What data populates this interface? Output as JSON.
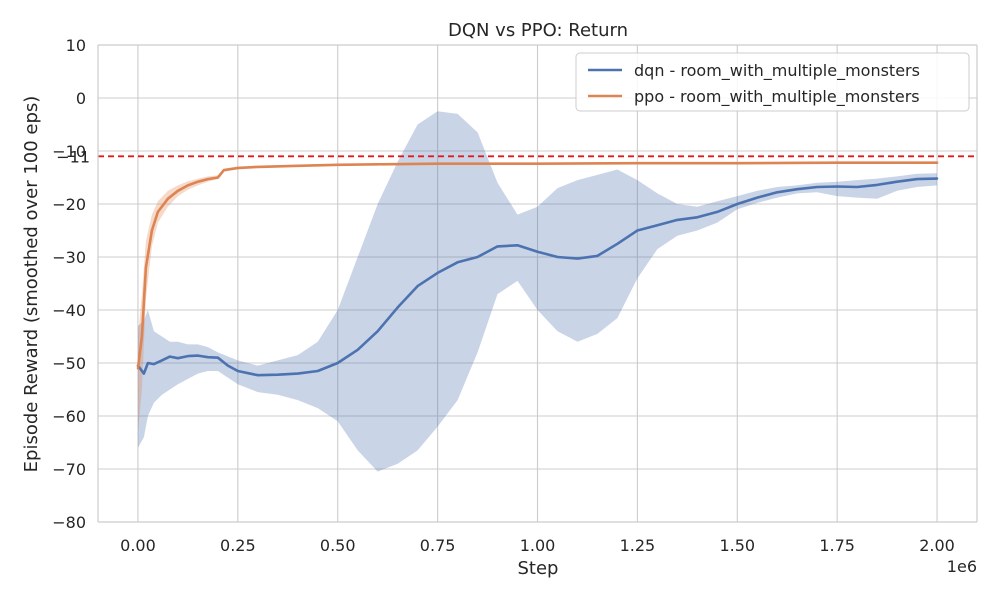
{
  "chart_data": {
    "type": "line",
    "title": "DQN vs PPO: Return",
    "xlabel": "Step",
    "ylabel": "Episode Reward (smoothed over 100 eps)",
    "x_offset_label": "1e6",
    "xlim": [
      -0.1,
      2.1
    ],
    "ylim": [
      -80,
      10
    ],
    "x_ticks": [
      0.0,
      0.25,
      0.5,
      0.75,
      1.0,
      1.25,
      1.5,
      1.75,
      2.0
    ],
    "x_tick_labels": [
      "0.00",
      "0.25",
      "0.50",
      "0.75",
      "1.00",
      "1.25",
      "1.50",
      "1.75",
      "2.00"
    ],
    "y_ticks": [
      10,
      0,
      -10,
      -20,
      -30,
      -40,
      -50,
      -60,
      -70,
      -80
    ],
    "y_tick_labels": [
      "10",
      "0",
      "−10",
      "−20",
      "−30",
      "−40",
      "−50",
      "−60",
      "−70",
      "−80"
    ],
    "grid": true,
    "legend_position": "top-right",
    "reference_line": {
      "y": -11,
      "label": "−11",
      "color": "#e31a1c",
      "style": "dashed"
    },
    "series": [
      {
        "name": "dqn - room_with_multiple_monsters",
        "color": "#4c72b0",
        "points": [
          [
            0.0,
            -50.5
          ],
          [
            0.015,
            -52.0
          ],
          [
            0.025,
            -50.0
          ],
          [
            0.04,
            -50.2
          ],
          [
            0.06,
            -49.5
          ],
          [
            0.08,
            -48.8
          ],
          [
            0.1,
            -49.1
          ],
          [
            0.125,
            -48.7
          ],
          [
            0.15,
            -48.6
          ],
          [
            0.175,
            -48.9
          ],
          [
            0.2,
            -49.0
          ],
          [
            0.225,
            -50.5
          ],
          [
            0.25,
            -51.5
          ],
          [
            0.3,
            -52.3
          ],
          [
            0.35,
            -52.2
          ],
          [
            0.4,
            -52.0
          ],
          [
            0.45,
            -51.5
          ],
          [
            0.5,
            -50.0
          ],
          [
            0.55,
            -47.5
          ],
          [
            0.6,
            -44.0
          ],
          [
            0.65,
            -39.5
          ],
          [
            0.7,
            -35.5
          ],
          [
            0.75,
            -33.0
          ],
          [
            0.8,
            -31.0
          ],
          [
            0.85,
            -30.0
          ],
          [
            0.9,
            -28.0
          ],
          [
            0.95,
            -27.8
          ],
          [
            1.0,
            -29.0
          ],
          [
            1.05,
            -30.0
          ],
          [
            1.1,
            -30.3
          ],
          [
            1.15,
            -29.8
          ],
          [
            1.2,
            -27.5
          ],
          [
            1.25,
            -25.0
          ],
          [
            1.3,
            -24.0
          ],
          [
            1.35,
            -23.0
          ],
          [
            1.4,
            -22.5
          ],
          [
            1.45,
            -21.5
          ],
          [
            1.5,
            -20.0
          ],
          [
            1.55,
            -18.8
          ],
          [
            1.6,
            -17.8
          ],
          [
            1.65,
            -17.2
          ],
          [
            1.7,
            -16.8
          ],
          [
            1.75,
            -16.7
          ],
          [
            1.8,
            -16.8
          ],
          [
            1.85,
            -16.4
          ],
          [
            1.9,
            -15.8
          ],
          [
            1.95,
            -15.3
          ],
          [
            2.0,
            -15.2
          ]
        ],
        "band_lower": [
          [
            0.0,
            -66.0
          ],
          [
            0.015,
            -64.0
          ],
          [
            0.025,
            -60.0
          ],
          [
            0.04,
            -57.5
          ],
          [
            0.06,
            -56.0
          ],
          [
            0.08,
            -55.0
          ],
          [
            0.1,
            -54.0
          ],
          [
            0.125,
            -53.0
          ],
          [
            0.15,
            -52.0
          ],
          [
            0.175,
            -51.5
          ],
          [
            0.2,
            -51.5
          ],
          [
            0.25,
            -54.0
          ],
          [
            0.3,
            -55.5
          ],
          [
            0.35,
            -56.0
          ],
          [
            0.4,
            -57.0
          ],
          [
            0.45,
            -58.5
          ],
          [
            0.5,
            -61.0
          ],
          [
            0.55,
            -66.5
          ],
          [
            0.6,
            -70.5
          ],
          [
            0.65,
            -69.0
          ],
          [
            0.7,
            -66.5
          ],
          [
            0.75,
            -62.0
          ],
          [
            0.8,
            -57.0
          ],
          [
            0.85,
            -48.0
          ],
          [
            0.9,
            -37.0
          ],
          [
            0.95,
            -34.5
          ],
          [
            1.0,
            -40.0
          ],
          [
            1.05,
            -44.0
          ],
          [
            1.1,
            -46.0
          ],
          [
            1.15,
            -44.5
          ],
          [
            1.2,
            -41.5
          ],
          [
            1.25,
            -34.0
          ],
          [
            1.3,
            -28.5
          ],
          [
            1.35,
            -26.0
          ],
          [
            1.4,
            -25.0
          ],
          [
            1.45,
            -23.5
          ],
          [
            1.5,
            -21.0
          ],
          [
            1.55,
            -19.8
          ],
          [
            1.6,
            -18.8
          ],
          [
            1.65,
            -18.0
          ],
          [
            1.7,
            -17.8
          ],
          [
            1.75,
            -18.5
          ],
          [
            1.8,
            -18.8
          ],
          [
            1.85,
            -19.0
          ],
          [
            1.9,
            -17.5
          ],
          [
            1.95,
            -16.8
          ],
          [
            2.0,
            -16.5
          ]
        ],
        "band_upper": [
          [
            0.0,
            -43.0
          ],
          [
            0.015,
            -42.0
          ],
          [
            0.025,
            -40.0
          ],
          [
            0.04,
            -44.0
          ],
          [
            0.06,
            -45.0
          ],
          [
            0.08,
            -46.0
          ],
          [
            0.1,
            -46.0
          ],
          [
            0.125,
            -46.5
          ],
          [
            0.15,
            -46.5
          ],
          [
            0.175,
            -47.0
          ],
          [
            0.2,
            -48.0
          ],
          [
            0.25,
            -49.5
          ],
          [
            0.3,
            -50.5
          ],
          [
            0.35,
            -49.5
          ],
          [
            0.4,
            -48.5
          ],
          [
            0.45,
            -46.0
          ],
          [
            0.5,
            -40.0
          ],
          [
            0.55,
            -30.0
          ],
          [
            0.6,
            -20.0
          ],
          [
            0.65,
            -12.0
          ],
          [
            0.7,
            -5.0
          ],
          [
            0.75,
            -2.5
          ],
          [
            0.8,
            -3.0
          ],
          [
            0.85,
            -6.5
          ],
          [
            0.9,
            -16.0
          ],
          [
            0.95,
            -22.0
          ],
          [
            1.0,
            -20.5
          ],
          [
            1.05,
            -17.0
          ],
          [
            1.1,
            -15.5
          ],
          [
            1.15,
            -14.5
          ],
          [
            1.2,
            -13.5
          ],
          [
            1.25,
            -15.5
          ],
          [
            1.3,
            -18.0
          ],
          [
            1.35,
            -20.0
          ],
          [
            1.4,
            -20.5
          ],
          [
            1.45,
            -19.5
          ],
          [
            1.5,
            -18.5
          ],
          [
            1.55,
            -17.5
          ],
          [
            1.6,
            -16.8
          ],
          [
            1.65,
            -16.5
          ],
          [
            1.7,
            -16.0
          ],
          [
            1.75,
            -15.8
          ],
          [
            1.8,
            -15.5
          ],
          [
            1.85,
            -15.2
          ],
          [
            1.9,
            -14.8
          ],
          [
            1.95,
            -14.3
          ],
          [
            2.0,
            -14.2
          ]
        ]
      },
      {
        "name": "ppo - room_with_multiple_monsters",
        "color": "#dd8452",
        "points": [
          [
            0.0,
            -51.0
          ],
          [
            0.01,
            -45.0
          ],
          [
            0.02,
            -32.0
          ],
          [
            0.035,
            -25.0
          ],
          [
            0.05,
            -21.5
          ],
          [
            0.075,
            -19.0
          ],
          [
            0.1,
            -17.5
          ],
          [
            0.125,
            -16.5
          ],
          [
            0.15,
            -15.8
          ],
          [
            0.175,
            -15.3
          ],
          [
            0.2,
            -15.0
          ],
          [
            0.215,
            -13.6
          ],
          [
            0.25,
            -13.2
          ],
          [
            0.3,
            -13.0
          ],
          [
            0.4,
            -12.8
          ],
          [
            0.5,
            -12.6
          ],
          [
            0.6,
            -12.5
          ],
          [
            0.75,
            -12.4
          ],
          [
            1.0,
            -12.4
          ],
          [
            1.25,
            -12.3
          ],
          [
            1.5,
            -12.3
          ],
          [
            1.75,
            -12.2
          ],
          [
            2.0,
            -12.2
          ]
        ],
        "band_lower": [
          [
            0.0,
            -63.0
          ],
          [
            0.01,
            -55.0
          ],
          [
            0.02,
            -38.0
          ],
          [
            0.035,
            -28.0
          ],
          [
            0.05,
            -23.5
          ],
          [
            0.075,
            -20.5
          ],
          [
            0.1,
            -18.5
          ],
          [
            0.125,
            -17.3
          ],
          [
            0.15,
            -16.5
          ],
          [
            0.175,
            -15.8
          ],
          [
            0.2,
            -15.3
          ],
          [
            0.215,
            -13.9
          ],
          [
            0.25,
            -13.5
          ],
          [
            0.3,
            -13.2
          ],
          [
            0.4,
            -13.0
          ],
          [
            0.5,
            -12.8
          ],
          [
            0.6,
            -12.7
          ],
          [
            0.75,
            -12.6
          ],
          [
            1.0,
            -12.6
          ],
          [
            1.25,
            -12.5
          ],
          [
            1.5,
            -12.5
          ],
          [
            1.75,
            -12.4
          ],
          [
            2.0,
            -12.4
          ]
        ],
        "band_upper": [
          [
            0.0,
            -45.0
          ],
          [
            0.01,
            -37.0
          ],
          [
            0.02,
            -27.0
          ],
          [
            0.035,
            -22.0
          ],
          [
            0.05,
            -19.5
          ],
          [
            0.075,
            -17.5
          ],
          [
            0.1,
            -16.5
          ],
          [
            0.125,
            -15.7
          ],
          [
            0.15,
            -15.2
          ],
          [
            0.175,
            -14.8
          ],
          [
            0.2,
            -14.6
          ],
          [
            0.215,
            -13.3
          ],
          [
            0.25,
            -12.9
          ],
          [
            0.3,
            -12.8
          ],
          [
            0.4,
            -12.6
          ],
          [
            0.5,
            -12.4
          ],
          [
            0.6,
            -12.3
          ],
          [
            0.75,
            -12.2
          ],
          [
            1.0,
            -12.2
          ],
          [
            1.25,
            -12.1
          ],
          [
            1.5,
            -12.1
          ],
          [
            1.75,
            -12.0
          ],
          [
            2.0,
            -12.0
          ]
        ]
      }
    ]
  }
}
